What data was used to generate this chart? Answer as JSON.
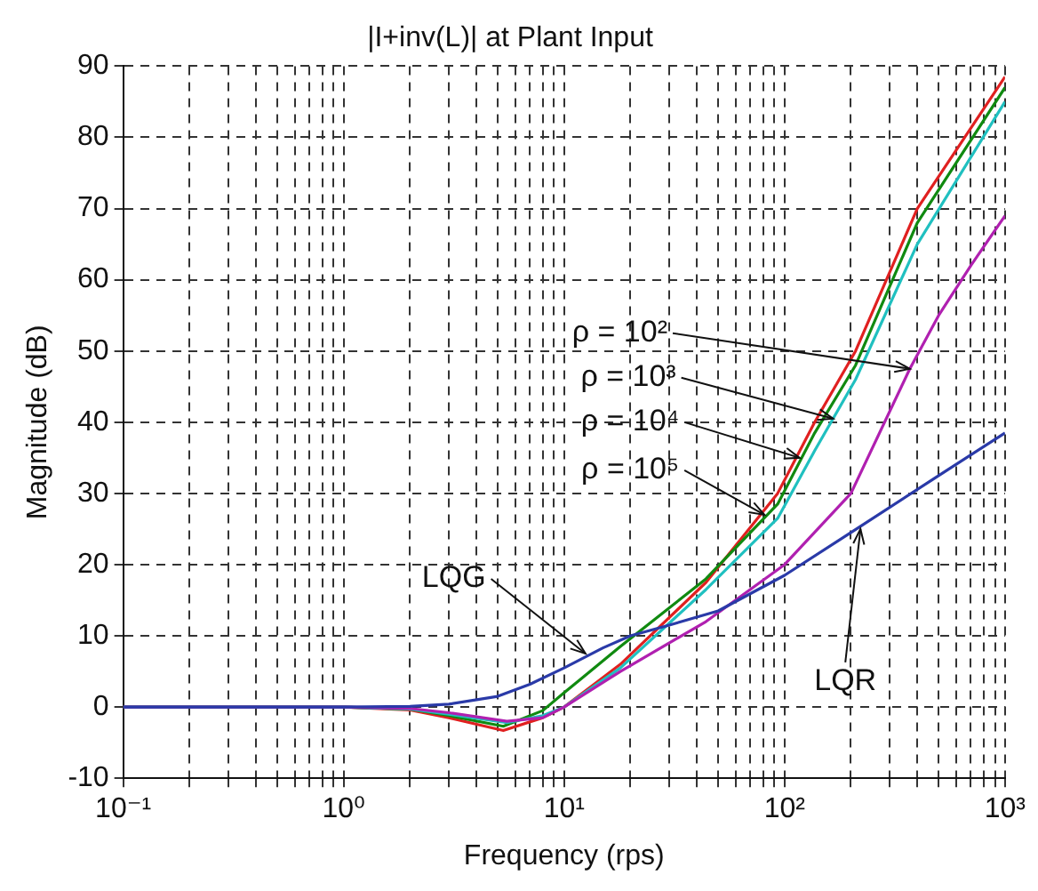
{
  "chart_data": {
    "type": "line",
    "title": "|I+inv(L)| at Plant Input",
    "xlabel": "Frequency (rps)",
    "ylabel": "Magnitude (dB)",
    "log": "x",
    "grid": true,
    "xlim": [
      0.1,
      1000
    ],
    "ylim": [
      -10,
      90
    ],
    "xticks": [
      {
        "value": 0.1,
        "label": "10⁻¹"
      },
      {
        "value": 0.2,
        "label": null
      },
      {
        "value": 0.3,
        "label": null
      },
      {
        "value": 0.4,
        "label": null
      },
      {
        "value": 0.5,
        "label": null
      },
      {
        "value": 0.6,
        "label": null
      },
      {
        "value": 0.7,
        "label": null
      },
      {
        "value": 0.8,
        "label": null
      },
      {
        "value": 0.9,
        "label": null
      },
      {
        "value": 1,
        "label": "10⁰"
      },
      {
        "value": 2,
        "label": null
      },
      {
        "value": 3,
        "label": null
      },
      {
        "value": 4,
        "label": null
      },
      {
        "value": 5,
        "label": null
      },
      {
        "value": 6,
        "label": null
      },
      {
        "value": 7,
        "label": null
      },
      {
        "value": 8,
        "label": null
      },
      {
        "value": 9,
        "label": null
      },
      {
        "value": 10,
        "label": "10¹"
      },
      {
        "value": 20,
        "label": null
      },
      {
        "value": 30,
        "label": null
      },
      {
        "value": 40,
        "label": null
      },
      {
        "value": 50,
        "label": null
      },
      {
        "value": 60,
        "label": null
      },
      {
        "value": 70,
        "label": null
      },
      {
        "value": 80,
        "label": null
      },
      {
        "value": 90,
        "label": null
      },
      {
        "value": 100,
        "label": "10²"
      },
      {
        "value": 200,
        "label": null
      },
      {
        "value": 300,
        "label": null
      },
      {
        "value": 400,
        "label": null
      },
      {
        "value": 500,
        "label": null
      },
      {
        "value": 600,
        "label": null
      },
      {
        "value": 700,
        "label": null
      },
      {
        "value": 800,
        "label": null
      },
      {
        "value": 900,
        "label": null
      },
      {
        "value": 1000,
        "label": "10³"
      }
    ],
    "yticks": [
      -10,
      0,
      10,
      20,
      30,
      40,
      50,
      60,
      70,
      80,
      90
    ],
    "series": [
      {
        "color": "#2a3aa8",
        "x": [
          0.1,
          1,
          2,
          3,
          5,
          7,
          10,
          15,
          20,
          30,
          50,
          100,
          200,
          500,
          1000
        ],
        "values": [
          0,
          0,
          0.1,
          0.4,
          1.5,
          3.2,
          5.5,
          8.3,
          10,
          11.5,
          13.5,
          18.5,
          24.5,
          32.5,
          38.5
        ]
      },
      {
        "color": "#b020b0",
        "x": [
          0.1,
          1,
          2,
          3,
          5.5,
          8,
          10,
          18,
          44,
          100,
          200,
          370,
          500,
          700,
          1000
        ],
        "values": [
          0,
          0,
          -0.2,
          -0.8,
          -2,
          -1.5,
          0,
          5,
          12,
          20,
          30,
          47.5,
          55,
          62,
          69
        ]
      },
      {
        "color": "#20c0c0",
        "x": [
          0.1,
          1,
          2,
          3,
          5.5,
          8,
          10,
          18,
          44,
          93,
          137,
          210,
          400,
          1000
        ],
        "values": [
          0,
          0,
          -0.3,
          -1,
          -2.2,
          -1.2,
          0,
          5.5,
          16.5,
          26.5,
          36,
          46,
          65,
          85
        ]
      },
      {
        "color": "#108a10",
        "x": [
          0.1,
          1,
          2,
          3,
          5.3,
          8,
          10,
          18,
          44,
          93,
          137,
          210,
          400,
          1000
        ],
        "values": [
          0,
          0,
          -0.3,
          -1.2,
          -2.7,
          -0.5,
          2,
          8.5,
          18,
          28.5,
          38.5,
          48,
          68,
          87
        ]
      },
      {
        "color": "#e02020",
        "x": [
          0.1,
          1,
          2,
          3,
          5.3,
          8,
          10,
          18,
          44,
          93,
          137,
          210,
          400,
          1000
        ],
        "values": [
          0,
          0,
          -0.4,
          -1.5,
          -3.3,
          -1.5,
          0,
          6,
          17.5,
          30,
          40,
          50,
          70,
          88.5
        ]
      }
    ],
    "annotations": [
      {
        "text": "ρ = 10²",
        "x": 370,
        "y": 47.5
      },
      {
        "text": "ρ = 10³",
        "x": 166,
        "y": 40.5
      },
      {
        "text": "ρ = 10⁴",
        "x": 117,
        "y": 35
      },
      {
        "text": "ρ = 10⁵",
        "x": 81,
        "y": 27
      },
      {
        "text": "LQG",
        "x": 12.5,
        "y": 7.5
      },
      {
        "text": "LQR",
        "x": 221,
        "y": 25
      }
    ]
  }
}
